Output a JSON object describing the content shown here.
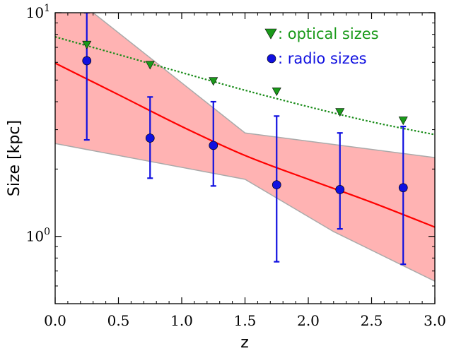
{
  "chart_data": {
    "type": "scatter",
    "xlabel": "z",
    "ylabel": "Size [kpc]",
    "xlim": [
      0.0,
      3.0
    ],
    "ylim": [
      0.5,
      10
    ],
    "y_scale": "log",
    "grid": false,
    "legend_position": "top-right",
    "x_ticks": [
      {
        "value": 0.0,
        "label": "0.0"
      },
      {
        "value": 0.5,
        "label": "0.5"
      },
      {
        "value": 1.0,
        "label": "1.0"
      },
      {
        "value": 1.5,
        "label": "1.5"
      },
      {
        "value": 2.0,
        "label": "2.0"
      },
      {
        "value": 2.5,
        "label": "2.5"
      },
      {
        "value": 3.0,
        "label": "3.0"
      }
    ],
    "y_ticks": [
      {
        "value": 1,
        "base": "10",
        "exponent": "0"
      },
      {
        "value": 10,
        "base": "10",
        "exponent": "1"
      }
    ],
    "series": [
      {
        "name": ": optical sizes",
        "marker": "triangle-down",
        "color": "#1a9a1a",
        "x": [
          0.25,
          0.75,
          1.25,
          1.75,
          2.25,
          2.75
        ],
        "y": [
          7.2,
          5.85,
          4.95,
          4.45,
          3.6,
          3.3
        ]
      },
      {
        "name": ": radio sizes",
        "marker": "circle",
        "color": "#1010e0",
        "x": [
          0.25,
          0.75,
          1.25,
          1.75,
          2.25,
          2.75
        ],
        "y": [
          6.1,
          2.75,
          2.55,
          1.7,
          1.62,
          1.65
        ],
        "err_low": [
          2.7,
          1.82,
          1.68,
          0.77,
          1.08,
          0.75
        ],
        "err_high": [
          10.0,
          4.2,
          4.0,
          3.45,
          2.9,
          3.1
        ]
      }
    ],
    "fit_line": {
      "color": "#ff0000",
      "x": [
        0.0,
        0.5,
        1.0,
        1.5,
        2.0,
        2.5,
        3.0
      ],
      "y": [
        5.95,
        4.3,
        3.1,
        2.3,
        1.8,
        1.42,
        1.1
      ]
    },
    "optical_fit_line": {
      "color": "#1a8c1a",
      "style": "dotted",
      "x": [
        0.0,
        0.5,
        1.0,
        1.5,
        2.0,
        2.5,
        3.0
      ],
      "y": [
        7.8,
        6.5,
        5.4,
        4.5,
        3.8,
        3.25,
        2.85
      ]
    },
    "band": {
      "fill": "#ffb3b3",
      "edge": "#aaaaaa",
      "upper_x": [
        0.0,
        0.3,
        1.5,
        3.0
      ],
      "upper_y": [
        10.0,
        10.0,
        2.9,
        2.25
      ],
      "lower_x": [
        0.0,
        1.5,
        2.2,
        3.0
      ],
      "lower_y": [
        2.6,
        1.8,
        1.05,
        0.63
      ]
    }
  }
}
